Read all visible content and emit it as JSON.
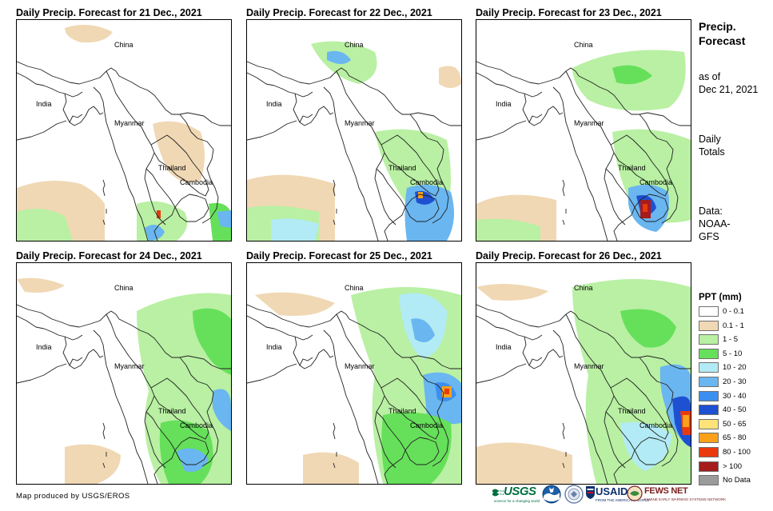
{
  "maps": [
    {
      "title": "Daily Precip. Forecast for 21 Dec., 2021"
    },
    {
      "title": "Daily Precip. Forecast for 22 Dec., 2021"
    },
    {
      "title": "Daily Precip. Forecast for 23 Dec., 2021"
    },
    {
      "title": "Daily Precip. Forecast for 24 Dec., 2021"
    },
    {
      "title": "Daily Precip. Forecast for 25 Dec., 2021"
    },
    {
      "title": "Daily Precip. Forecast for 26 Dec., 2021"
    }
  ],
  "map_labels": {
    "china": "China",
    "india": "India",
    "myanmar": "Myanmar",
    "thailand": "Thailand",
    "cambodia": "Cambodia"
  },
  "sidebar": {
    "title_line1": "Precip.",
    "title_line2": "Forecast",
    "asof_line1": "as of",
    "asof_line2": "Dec 21, 2021",
    "daily_line1": "Daily",
    "daily_line2": "Totals",
    "data_line1": "Data:",
    "data_line2": "NOAA-",
    "data_line3": "GFS"
  },
  "legend": {
    "title": "PPT (mm)",
    "items": [
      {
        "label": "0 - 0.1",
        "color": "#ffffff"
      },
      {
        "label": "0.1 - 1",
        "color": "#f0d8b4"
      },
      {
        "label": "1 - 5",
        "color": "#b9f0a3"
      },
      {
        "label": "5 - 10",
        "color": "#66e05a"
      },
      {
        "label": "10 - 20",
        "color": "#b2ebf5"
      },
      {
        "label": "20 - 30",
        "color": "#6ab6f0"
      },
      {
        "label": "30 - 40",
        "color": "#3c8ff0"
      },
      {
        "label": "40 - 50",
        "color": "#1e50d2"
      },
      {
        "label": "50 - 65",
        "color": "#fde37a"
      },
      {
        "label": "65 - 80",
        "color": "#f9a11b"
      },
      {
        "label": "80 - 100",
        "color": "#ea3a0c"
      },
      {
        "label": "> 100",
        "color": "#a61c1c"
      },
      {
        "label": "No Data",
        "color": "#9b9b9b"
      }
    ]
  },
  "credit": "Map produced by USGS/EROS",
  "logos": {
    "usgs": "USGS",
    "usgs_tagline": "science for a changing world",
    "usaid": "USAID",
    "usaid_tagline": "FROM THE AMERICAN PEOPLE",
    "fews": "FEWS NET",
    "fews_tagline": "FAMINE EARLY WARNING SYSTEMS NETWORK"
  }
}
